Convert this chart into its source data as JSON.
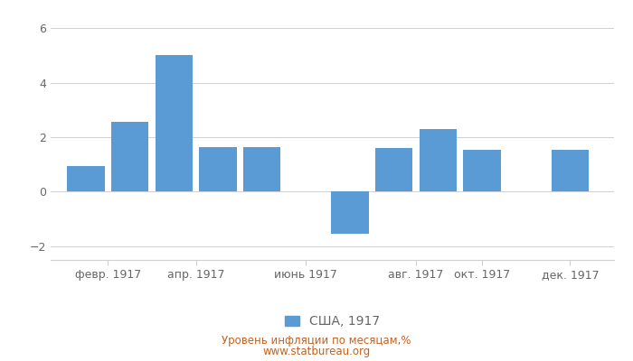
{
  "values": [
    0.93,
    2.56,
    5.0,
    1.65,
    1.62,
    -1.55,
    1.6,
    2.3,
    1.54,
    1.53
  ],
  "bar_positions": [
    1,
    2,
    3,
    4,
    5,
    7,
    8,
    9,
    10,
    12
  ],
  "tick_positions": [
    1.5,
    3.5,
    6,
    8.5,
    10,
    12
  ],
  "tick_labels": [
    "февр. 1917",
    "апр. 1917",
    "июнь 1917",
    "авг. 1917",
    "окт. 1917",
    "дек. 1917"
  ],
  "bar_color": "#5b9bd5",
  "bar_width": 0.85,
  "ylim": [
    -2.5,
    6.5
  ],
  "yticks": [
    -2,
    0,
    2,
    4,
    6
  ],
  "legend_label": "США, 1917",
  "footer_line1": "Уровень инфляции по месяцам,%",
  "footer_line2": "www.statbureau.org",
  "footer_color": "#c8601a",
  "background_color": "#ffffff",
  "grid_color": "#d0d0d0",
  "tick_color": "#666666"
}
